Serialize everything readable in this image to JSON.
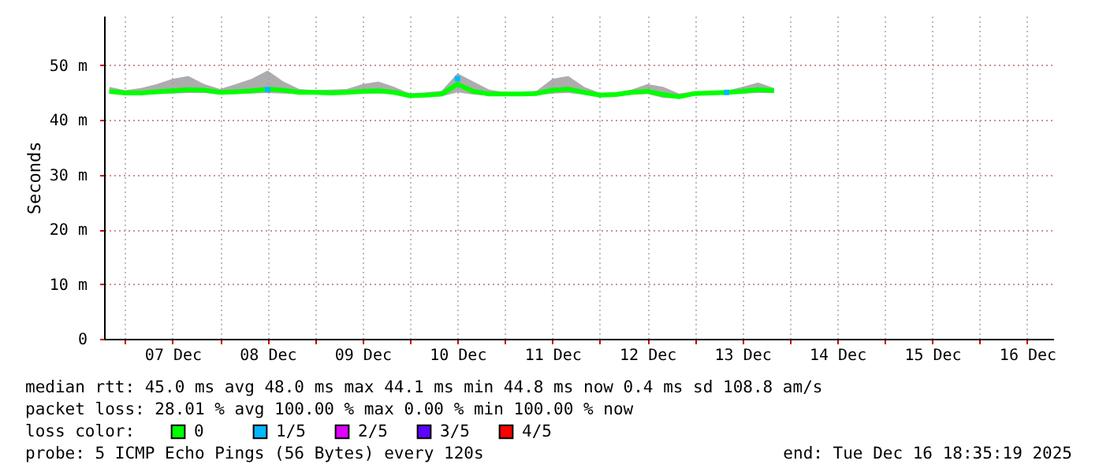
{
  "chart_data": {
    "type": "line",
    "ylabel": "Seconds",
    "xlim": [
      "2025-12-06T18:40",
      "2025-12-16T18:35"
    ],
    "xticks": [
      {
        "value": "2025-12-07T00:00",
        "label": null
      },
      {
        "value": "2025-12-07T12:00",
        "label": "07 Dec"
      },
      {
        "value": "2025-12-08T00:00",
        "label": null
      },
      {
        "value": "2025-12-08T12:00",
        "label": "08 Dec"
      },
      {
        "value": "2025-12-09T00:00",
        "label": null
      },
      {
        "value": "2025-12-09T12:00",
        "label": "09 Dec"
      },
      {
        "value": "2025-12-10T00:00",
        "label": null
      },
      {
        "value": "2025-12-10T12:00",
        "label": "10 Dec"
      },
      {
        "value": "2025-12-11T00:00",
        "label": null
      },
      {
        "value": "2025-12-11T12:00",
        "label": "11 Dec"
      },
      {
        "value": "2025-12-12T00:00",
        "label": null
      },
      {
        "value": "2025-12-12T12:00",
        "label": "12 Dec"
      },
      {
        "value": "2025-12-13T00:00",
        "label": null
      },
      {
        "value": "2025-12-13T12:00",
        "label": "13 Dec"
      },
      {
        "value": "2025-12-14T00:00",
        "label": null
      },
      {
        "value": "2025-12-14T12:00",
        "label": "14 Dec"
      },
      {
        "value": "2025-12-15T00:00",
        "label": null
      },
      {
        "value": "2025-12-15T12:00",
        "label": "15 Dec"
      },
      {
        "value": "2025-12-16T00:00",
        "label": null
      },
      {
        "value": "2025-12-16T12:00",
        "label": "16 Dec"
      }
    ],
    "ylim": [
      0,
      59
    ],
    "yticks": [
      0,
      {
        "value": 10,
        "label": "10 m"
      },
      {
        "value": 20,
        "label": "20 m"
      },
      {
        "value": 30,
        "label": "30 m"
      },
      {
        "value": 40,
        "label": "40 m"
      },
      {
        "value": 50,
        "label": "50 m"
      }
    ],
    "grid": true,
    "legend": "bottom",
    "series": [
      {
        "name": "0",
        "color": "#00ff00",
        "type": "line",
        "x": [
          "2025-12-06T20:00",
          "2025-12-07T00:00",
          "2025-12-07T04:00",
          "2025-12-07T08:00",
          "2025-12-07T12:00",
          "2025-12-07T16:00",
          "2025-12-07T20:00",
          "2025-12-08T00:00",
          "2025-12-08T04:00",
          "2025-12-08T08:00",
          "2025-12-08T12:00",
          "2025-12-08T16:00",
          "2025-12-08T20:00",
          "2025-12-09T00:00",
          "2025-12-09T04:00",
          "2025-12-09T08:00",
          "2025-12-09T12:00",
          "2025-12-09T16:00",
          "2025-12-09T20:00",
          "2025-12-10T00:00",
          "2025-12-10T04:00",
          "2025-12-10T08:00",
          "2025-12-10T12:00",
          "2025-12-10T16:00",
          "2025-12-10T20:00",
          "2025-12-11T00:00",
          "2025-12-11T04:00",
          "2025-12-11T08:00",
          "2025-12-11T12:00",
          "2025-12-11T16:00",
          "2025-12-11T20:00",
          "2025-12-12T00:00",
          "2025-12-12T04:00",
          "2025-12-12T08:00",
          "2025-12-12T12:00",
          "2025-12-12T16:00",
          "2025-12-12T20:00",
          "2025-12-13T00:00",
          "2025-12-13T04:00",
          "2025-12-13T08:00",
          "2025-12-13T12:00",
          "2025-12-13T16:00",
          "2025-12-13T20:00"
        ],
        "values": [
          45.2,
          44.9,
          44.9,
          45.1,
          45.3,
          45.5,
          45.4,
          45.0,
          45.1,
          45.3,
          45.6,
          45.4,
          45.0,
          45.0,
          44.9,
          45.0,
          45.2,
          45.3,
          45.0,
          44.4,
          44.5,
          44.7,
          46.5,
          45.2,
          44.7,
          44.7,
          44.7,
          44.8,
          45.4,
          45.6,
          45.0,
          44.5,
          44.6,
          45.0,
          45.2,
          44.6,
          44.2,
          44.8,
          44.9,
          45.0,
          45.2,
          45.5,
          45.3
        ],
        "lower": [
          44.8,
          44.6,
          44.6,
          44.7,
          44.8,
          44.9,
          44.9,
          44.7,
          44.7,
          44.8,
          44.9,
          44.8,
          44.7,
          44.7,
          44.6,
          44.7,
          44.8,
          44.8,
          44.7,
          44.1,
          44.2,
          44.3,
          45.0,
          44.6,
          44.4,
          44.4,
          44.4,
          44.5,
          44.8,
          44.9,
          44.6,
          44.2,
          44.3,
          44.6,
          44.7,
          44.0,
          43.9,
          44.5,
          44.6,
          44.7,
          44.8,
          44.9,
          44.9
        ],
        "upper": [
          46.0,
          45.4,
          45.8,
          46.5,
          47.5,
          48.0,
          46.5,
          45.6,
          46.5,
          47.5,
          49.0,
          47.0,
          45.6,
          45.4,
          45.5,
          45.6,
          46.5,
          47.0,
          46.0,
          44.8,
          45.0,
          45.3,
          48.5,
          47.0,
          45.5,
          45.0,
          45.0,
          45.3,
          47.5,
          48.0,
          46.0,
          44.9,
          45.0,
          45.5,
          46.5,
          46.0,
          44.8,
          45.2,
          45.2,
          45.3,
          46.0,
          46.8,
          45.8
        ]
      },
      {
        "name": "1/5",
        "color": "#00b8ff",
        "type": "scatter",
        "x": [
          "2025-12-08T12:00",
          "2025-12-10T12:00",
          "2025-12-13T08:00"
        ],
        "values": [
          45.5,
          47.5,
          45.0
        ]
      },
      {
        "name": "2/5",
        "color": "#e000ff",
        "type": "scatter"
      },
      {
        "name": "3/5",
        "color": "#6000ff",
        "type": "scatter"
      },
      {
        "name": "4/5",
        "color": "#ff0000",
        "type": "scatter"
      }
    ],
    "annotations": [
      "median rtt:  45.0 ms avg  48.0 ms max  44.1 ms min  44.8 ms now  0.4 ms sd  108.8   am/s",
      "packet loss: 28.01 % avg  100.00 % max  0.00 % min  100.00 % now",
      "loss color:",
      "probe:       5 ICMP Echo Pings (56 Bytes) every 120s",
      "end: Tue Dec 16 18:35:19 2025"
    ]
  }
}
